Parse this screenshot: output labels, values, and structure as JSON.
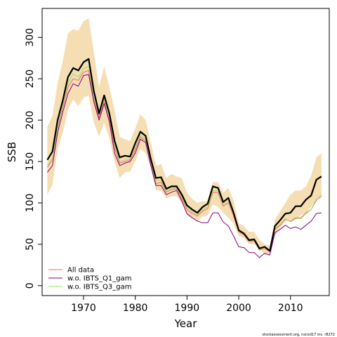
{
  "chart_data": {
    "type": "line",
    "title": "",
    "xlabel": "Year",
    "ylabel": "SSB",
    "xlim": [
      1962,
      2017.5
    ],
    "ylim": [
      -12,
      335
    ],
    "xticks": [
      1970,
      1980,
      1990,
      2000,
      2010
    ],
    "yticks": [
      0,
      50,
      100,
      150,
      200,
      250,
      300
    ],
    "grid": false,
    "legend_position": "bottom-left",
    "footnote": "stockassessment.org, nscod17 ins. r8272",
    "x": [
      1963,
      1964,
      1965,
      1966,
      1967,
      1968,
      1969,
      1970,
      1971,
      1972,
      1973,
      1974,
      1975,
      1976,
      1977,
      1978,
      1979,
      1980,
      1981,
      1982,
      1983,
      1984,
      1985,
      1986,
      1987,
      1988,
      1989,
      1990,
      1991,
      1992,
      1993,
      1994,
      1995,
      1996,
      1997,
      1998,
      1999,
      2000,
      2001,
      2002,
      2003,
      2004,
      2005,
      2006,
      2007,
      2008,
      2009,
      2010,
      2011,
      2012,
      2013,
      2014,
      2015,
      2016
    ],
    "band": {
      "color": "#f5deb3",
      "lower": [
        110,
        122,
        165,
        185,
        212,
        225,
        217,
        227,
        230,
        197,
        180,
        197,
        178,
        150,
        130,
        137,
        138,
        150,
        165,
        160,
        143,
        115,
        115,
        105,
        108,
        108,
        100,
        85,
        82,
        78,
        83,
        85,
        98,
        95,
        88,
        82,
        75,
        60,
        58,
        50,
        50,
        45,
        38,
        36,
        60,
        70,
        78,
        80,
        80,
        85,
        88,
        95,
        105,
        108
      ],
      "upper": [
        192,
        205,
        245,
        272,
        305,
        310,
        308,
        320,
        323,
        282,
        240,
        265,
        240,
        212,
        180,
        177,
        175,
        190,
        207,
        200,
        173,
        145,
        147,
        130,
        135,
        132,
        130,
        112,
        105,
        100,
        102,
        102,
        125,
        125,
        112,
        118,
        103,
        75,
        72,
        65,
        65,
        55,
        50,
        48,
        80,
        90,
        100,
        110,
        115,
        115,
        120,
        133,
        155,
        160
      ]
    },
    "series": [
      {
        "name": "",
        "color": "#000000",
        "width": 2.2,
        "values": [
          152,
          162,
          200,
          224,
          252,
          263,
          260,
          270,
          274,
          235,
          208,
          230,
          208,
          175,
          155,
          157,
          156,
          172,
          186,
          181,
          153,
          130,
          131,
          117,
          120,
          120,
          110,
          97,
          92,
          88,
          95,
          99,
          120,
          118,
          101,
          106,
          88,
          67,
          63,
          55,
          56,
          45,
          47,
          42,
          72,
          79,
          87,
          88,
          96,
          96,
          104,
          109,
          128,
          132
        ]
      },
      {
        "name": "All data",
        "color": "#ff6666",
        "width": 1,
        "values": [
          143,
          152,
          190,
          215,
          240,
          250,
          248,
          258,
          260,
          225,
          203,
          222,
          200,
          166,
          148,
          150,
          152,
          164,
          180,
          175,
          148,
          123,
          125,
          113,
          116,
          117,
          105,
          92,
          87,
          84,
          90,
          93,
          113,
          112,
          96,
          100,
          84,
          65,
          61,
          53,
          54,
          43,
          45,
          41,
          68,
          73,
          80,
          78,
          82,
          82,
          88,
          92,
          103,
          108
        ]
      },
      {
        "name": "w.o. IBTS_Q1_gam",
        "color": "#800080",
        "width": 1,
        "values": [
          137,
          145,
          185,
          210,
          232,
          244,
          241,
          254,
          255,
          222,
          200,
          220,
          198,
          160,
          145,
          148,
          150,
          160,
          177,
          173,
          145,
          121,
          121,
          110,
          113,
          115,
          102,
          87,
          82,
          78,
          76,
          76,
          88,
          88,
          77,
          72,
          60,
          47,
          46,
          40,
          40,
          34,
          39,
          37,
          64,
          68,
          73,
          69,
          71,
          68,
          73,
          78,
          87,
          88
        ]
      },
      {
        "name": "w.o. IBTS_Q3_gam",
        "color": "#99e066",
        "width": 1,
        "values": [
          145,
          154,
          192,
          218,
          245,
          256,
          252,
          262,
          265,
          228,
          206,
          225,
          205,
          170,
          150,
          152,
          153,
          167,
          182,
          177,
          150,
          126,
          128,
          114,
          118,
          118,
          107,
          94,
          89,
          86,
          92,
          95,
          115,
          114,
          98,
          102,
          86,
          66,
          62,
          54,
          55,
          44,
          46,
          42,
          69,
          74,
          81,
          77,
          81,
          81,
          87,
          92,
          105,
          110
        ]
      }
    ]
  }
}
